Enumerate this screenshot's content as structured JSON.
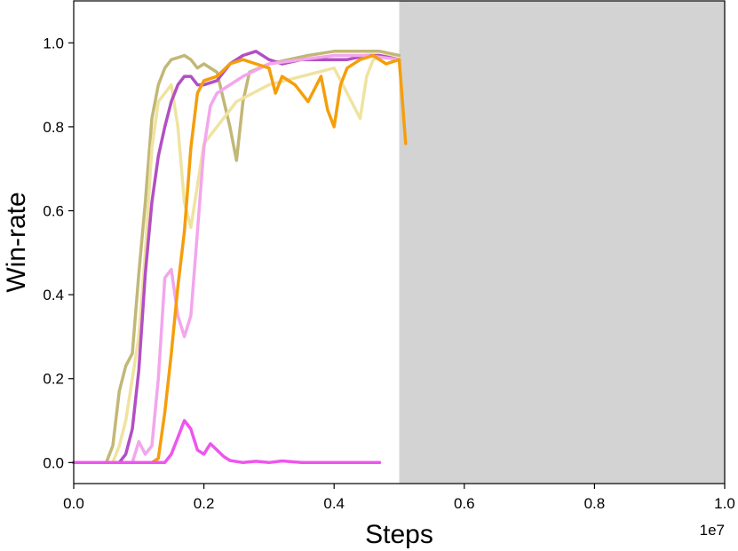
{
  "chart_data": {
    "type": "line",
    "title": "",
    "xlabel": "Steps",
    "ylabel": "Win-rate",
    "x_offset_label": "1e7",
    "xlim": [
      0.0,
      1.0
    ],
    "ylim": [
      -0.05,
      1.1
    ],
    "x_ticks": [
      0.0,
      0.2,
      0.4,
      0.6,
      0.8,
      1.0
    ],
    "x_tick_labels": [
      "0.0",
      "0.2",
      "0.4",
      "0.6",
      "0.8",
      "1.0"
    ],
    "y_ticks": [
      0.0,
      0.2,
      0.4,
      0.6,
      0.8,
      1.0
    ],
    "y_tick_labels": [
      "0.0",
      "0.2",
      "0.4",
      "0.6",
      "0.8",
      "1.0"
    ],
    "grid": false,
    "legend": "none",
    "shaded_region": {
      "x_start": 0.5,
      "x_end": 1.0,
      "color": "#d3d3d3"
    },
    "series": [
      {
        "color": "#c2b777",
        "x": [
          0.0,
          0.05,
          0.06,
          0.07,
          0.08,
          0.09,
          0.1,
          0.11,
          0.12,
          0.13,
          0.14,
          0.15,
          0.16,
          0.17,
          0.18,
          0.19,
          0.2,
          0.22,
          0.24,
          0.25,
          0.26,
          0.27,
          0.3,
          0.33,
          0.36,
          0.4,
          0.44,
          0.47,
          0.5
        ],
        "y": [
          0.0,
          0.0,
          0.04,
          0.17,
          0.23,
          0.26,
          0.45,
          0.62,
          0.82,
          0.9,
          0.94,
          0.96,
          0.965,
          0.97,
          0.96,
          0.94,
          0.95,
          0.93,
          0.8,
          0.72,
          0.86,
          0.93,
          0.95,
          0.96,
          0.97,
          0.98,
          0.98,
          0.98,
          0.97
        ]
      },
      {
        "color": "#efe3a1",
        "x": [
          0.0,
          0.06,
          0.07,
          0.08,
          0.09,
          0.1,
          0.11,
          0.12,
          0.13,
          0.14,
          0.15,
          0.16,
          0.17,
          0.18,
          0.19,
          0.2,
          0.22,
          0.25,
          0.3,
          0.35,
          0.4,
          0.42,
          0.44,
          0.45,
          0.46,
          0.48,
          0.5
        ],
        "y": [
          0.0,
          0.0,
          0.04,
          0.1,
          0.2,
          0.3,
          0.5,
          0.75,
          0.86,
          0.88,
          0.9,
          0.8,
          0.62,
          0.56,
          0.66,
          0.76,
          0.8,
          0.86,
          0.9,
          0.92,
          0.94,
          0.88,
          0.82,
          0.92,
          0.96,
          0.97,
          0.96
        ]
      },
      {
        "color": "#b24fc4",
        "x": [
          0.0,
          0.07,
          0.08,
          0.09,
          0.1,
          0.11,
          0.12,
          0.13,
          0.14,
          0.15,
          0.16,
          0.17,
          0.18,
          0.19,
          0.2,
          0.22,
          0.24,
          0.26,
          0.28,
          0.3,
          0.32,
          0.35,
          0.38,
          0.4,
          0.42,
          0.45,
          0.47,
          0.5
        ],
        "y": [
          0.0,
          0.0,
          0.02,
          0.08,
          0.22,
          0.45,
          0.62,
          0.73,
          0.8,
          0.86,
          0.9,
          0.92,
          0.92,
          0.9,
          0.9,
          0.91,
          0.95,
          0.97,
          0.98,
          0.96,
          0.95,
          0.96,
          0.96,
          0.96,
          0.96,
          0.97,
          0.97,
          0.96
        ]
      },
      {
        "color": "#f3a6ec",
        "x": [
          0.0,
          0.09,
          0.1,
          0.11,
          0.12,
          0.13,
          0.14,
          0.15,
          0.16,
          0.17,
          0.18,
          0.19,
          0.2,
          0.21,
          0.22,
          0.24,
          0.26,
          0.3,
          0.35,
          0.4,
          0.45,
          0.5
        ],
        "y": [
          0.0,
          0.0,
          0.05,
          0.02,
          0.04,
          0.2,
          0.44,
          0.46,
          0.35,
          0.3,
          0.35,
          0.55,
          0.75,
          0.85,
          0.88,
          0.9,
          0.92,
          0.95,
          0.96,
          0.97,
          0.97,
          0.96
        ]
      },
      {
        "color": "#f59e0b",
        "x": [
          0.0,
          0.12,
          0.13,
          0.14,
          0.15,
          0.16,
          0.17,
          0.18,
          0.19,
          0.2,
          0.22,
          0.24,
          0.26,
          0.28,
          0.3,
          0.31,
          0.32,
          0.34,
          0.36,
          0.38,
          0.39,
          0.4,
          0.41,
          0.42,
          0.44,
          0.46,
          0.48,
          0.5,
          0.51
        ],
        "y": [
          0.0,
          0.0,
          0.01,
          0.12,
          0.26,
          0.42,
          0.55,
          0.75,
          0.88,
          0.91,
          0.92,
          0.95,
          0.96,
          0.95,
          0.94,
          0.88,
          0.92,
          0.9,
          0.86,
          0.92,
          0.84,
          0.8,
          0.9,
          0.94,
          0.96,
          0.97,
          0.95,
          0.96,
          0.76
        ]
      },
      {
        "color": "#ee55ee",
        "x": [
          0.0,
          0.14,
          0.15,
          0.16,
          0.17,
          0.18,
          0.19,
          0.2,
          0.21,
          0.22,
          0.23,
          0.24,
          0.26,
          0.28,
          0.3,
          0.32,
          0.35,
          0.4,
          0.45,
          0.47
        ],
        "y": [
          0.0,
          0.0,
          0.02,
          0.06,
          0.1,
          0.08,
          0.03,
          0.02,
          0.045,
          0.03,
          0.015,
          0.005,
          0.0,
          0.003,
          0.0,
          0.004,
          0.0,
          0.0,
          0.0,
          0.0
        ]
      }
    ]
  }
}
